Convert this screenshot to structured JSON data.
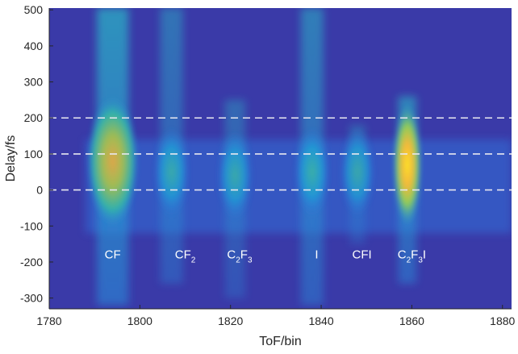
{
  "chart_data": {
    "type": "heatmap",
    "title": "",
    "xlabel": "ToF/bin",
    "ylabel": "Delay/fs",
    "xlim": [
      1780,
      1882
    ],
    "ylim": [
      -330,
      505
    ],
    "x_ticks": [
      1780,
      1800,
      1820,
      1840,
      1860,
      1880
    ],
    "y_ticks": [
      500,
      400,
      300,
      200,
      100,
      0,
      -100,
      -200,
      -300
    ],
    "reference_lines": [
      {
        "axis": "y",
        "value": 200,
        "style": "dashed",
        "color": "#e8e8f0"
      },
      {
        "axis": "y",
        "value": 100,
        "style": "dashed",
        "color": "#e8e8f0"
      },
      {
        "axis": "y",
        "value": 0,
        "style": "dashed",
        "color": "#e8e8f0"
      }
    ],
    "peaks": [
      {
        "name": "CF",
        "x": 1794,
        "peak_delay": 80,
        "intensity": 0.8
      },
      {
        "name": "CF2",
        "x": 1807,
        "peak_delay": 50,
        "intensity": 0.4
      },
      {
        "name": "C2F3",
        "x": 1821,
        "peak_delay": 40,
        "intensity": 0.38
      },
      {
        "name": "I",
        "x": 1838,
        "peak_delay": 50,
        "intensity": 0.5
      },
      {
        "name": "CFI",
        "x": 1848,
        "peak_delay": 50,
        "intensity": 0.36
      },
      {
        "name": "C2F3I",
        "x": 1859,
        "peak_delay": 70,
        "intensity": 1.0
      }
    ],
    "annotations": [
      {
        "text": "CF",
        "x": 1794,
        "y": -190
      },
      {
        "text": "CF",
        "sub": "2",
        "x": 1810,
        "y": -190
      },
      {
        "text": "C",
        "sub": "2",
        "text2": "F",
        "sub2": "3",
        "x": 1822,
        "y": -190
      },
      {
        "text": "I",
        "x": 1839,
        "y": -190
      },
      {
        "text": "CFI",
        "x": 1849,
        "y": -190
      },
      {
        "text": "C",
        "sub": "2",
        "text2": "F",
        "sub2": "3",
        "text3": "I",
        "x": 1860,
        "y": -190
      }
    ],
    "colormap": "parula",
    "background_color": "#3a3aa8",
    "grid": false
  }
}
